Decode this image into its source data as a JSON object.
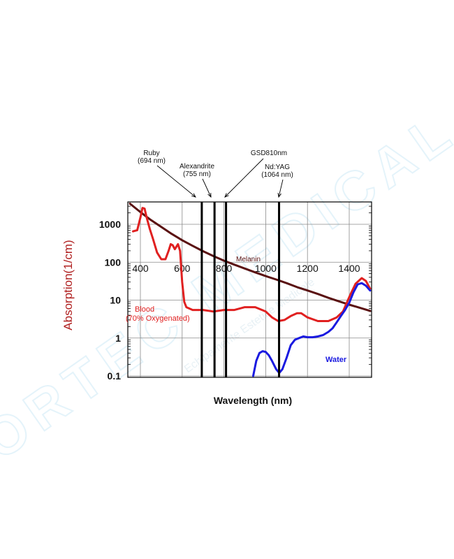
{
  "watermark": {
    "text": "ORTEC MEDICAL",
    "subtext": "Echipamente Estetice Medicale",
    "color": "#cfeaf6"
  },
  "chart_data": {
    "type": "line",
    "title": "",
    "xlabel": "Wavelength (nm)",
    "ylabel": "Absorption(1/cm)",
    "xscale": "linear",
    "yscale": "log",
    "xlim": [
      350,
      1500
    ],
    "ylim": [
      0.1,
      3500
    ],
    "x_ticks": [
      {
        "value": 400,
        "label": "400"
      },
      {
        "value": 600,
        "label": "600"
      },
      {
        "value": 800,
        "label": "800"
      },
      {
        "value": 1000,
        "label": "1000"
      },
      {
        "value": 1200,
        "label": "1200"
      },
      {
        "value": 1400,
        "label": "1400"
      }
    ],
    "y_ticks": [
      {
        "value": 1000,
        "label": "1000"
      },
      {
        "value": 100,
        "label": "100"
      },
      {
        "value": 10,
        "label": "10"
      },
      {
        "value": 1,
        "label": "1"
      },
      {
        "value": 0.1,
        "label": "0.1"
      }
    ],
    "grid": true,
    "series": [
      {
        "name": "Melanin",
        "color": "#5a1111",
        "x": [
          350,
          400,
          450,
          500,
          550,
          600,
          650,
          700,
          750,
          800,
          850,
          900,
          950,
          1000,
          1050,
          1100,
          1150,
          1200,
          1250,
          1300,
          1350,
          1400,
          1450,
          1500
        ],
        "y": [
          3500,
          2100,
          1300,
          850,
          560,
          380,
          270,
          195,
          145,
          110,
          86,
          68,
          54,
          43,
          35,
          28,
          22,
          18,
          14.5,
          11.5,
          9.3,
          7.6,
          6.3,
          5.2
        ]
      },
      {
        "name": "Blood (70% Oxygenated)",
        "color": "#e02020",
        "x": [
          365,
          385,
          400,
          410,
          420,
          430,
          445,
          460,
          480,
          500,
          520,
          535,
          545,
          555,
          565,
          575,
          580,
          590,
          600,
          610,
          620,
          650,
          700,
          750,
          800,
          850,
          900,
          950,
          1000,
          1030,
          1060,
          1090,
          1120,
          1150,
          1170,
          1200,
          1250,
          1300,
          1340,
          1370,
          1400,
          1430,
          1460,
          1480,
          1500
        ],
        "y": [
          650,
          700,
          1500,
          2700,
          2600,
          1500,
          750,
          420,
          180,
          120,
          120,
          200,
          300,
          280,
          220,
          270,
          300,
          200,
          30,
          9,
          6.5,
          5.5,
          5.5,
          5,
          5.5,
          5.5,
          6.5,
          6.5,
          5,
          3.5,
          2.8,
          3,
          3.8,
          4.5,
          4.5,
          3.5,
          2.8,
          2.8,
          3.5,
          5,
          12,
          27,
          38,
          32,
          20
        ]
      },
      {
        "name": "Water",
        "color": "#1a1ae0",
        "x": [
          940,
          955,
          970,
          985,
          1000,
          1015,
          1030,
          1050,
          1065,
          1080,
          1100,
          1120,
          1140,
          1160,
          1180,
          1200,
          1225,
          1250,
          1275,
          1300,
          1320,
          1340,
          1360,
          1380,
          1400,
          1420,
          1440,
          1460,
          1480,
          1500
        ],
        "y": [
          0.1,
          0.25,
          0.4,
          0.45,
          0.43,
          0.35,
          0.25,
          0.15,
          0.12,
          0.15,
          0.3,
          0.65,
          0.9,
          1,
          1.1,
          1.05,
          1.05,
          1.1,
          1.2,
          1.45,
          1.8,
          2.6,
          3.8,
          5.5,
          8.5,
          16,
          26,
          28,
          24,
          18
        ]
      }
    ],
    "lasers": [
      {
        "name": "Ruby",
        "wavelength_label": "(694 nm)",
        "wavelength": 694
      },
      {
        "name": "Alexandrite",
        "wavelength_label": "(755 nm)",
        "wavelength": 755
      },
      {
        "name": "GSD810nm",
        "wavelength_label": "",
        "wavelength": 810
      },
      {
        "name": "Nd:YAG",
        "wavelength_label": "(1064 nm)",
        "wavelength": 1064
      }
    ],
    "annotations": [
      {
        "text": "Melanin",
        "color": "#5a1111"
      },
      {
        "text": "Blood",
        "color": "#e02020"
      },
      {
        "text": "(70% Oxygenated)",
        "color": "#e02020"
      },
      {
        "text": "Water",
        "color": "#1a1ae0"
      }
    ]
  }
}
